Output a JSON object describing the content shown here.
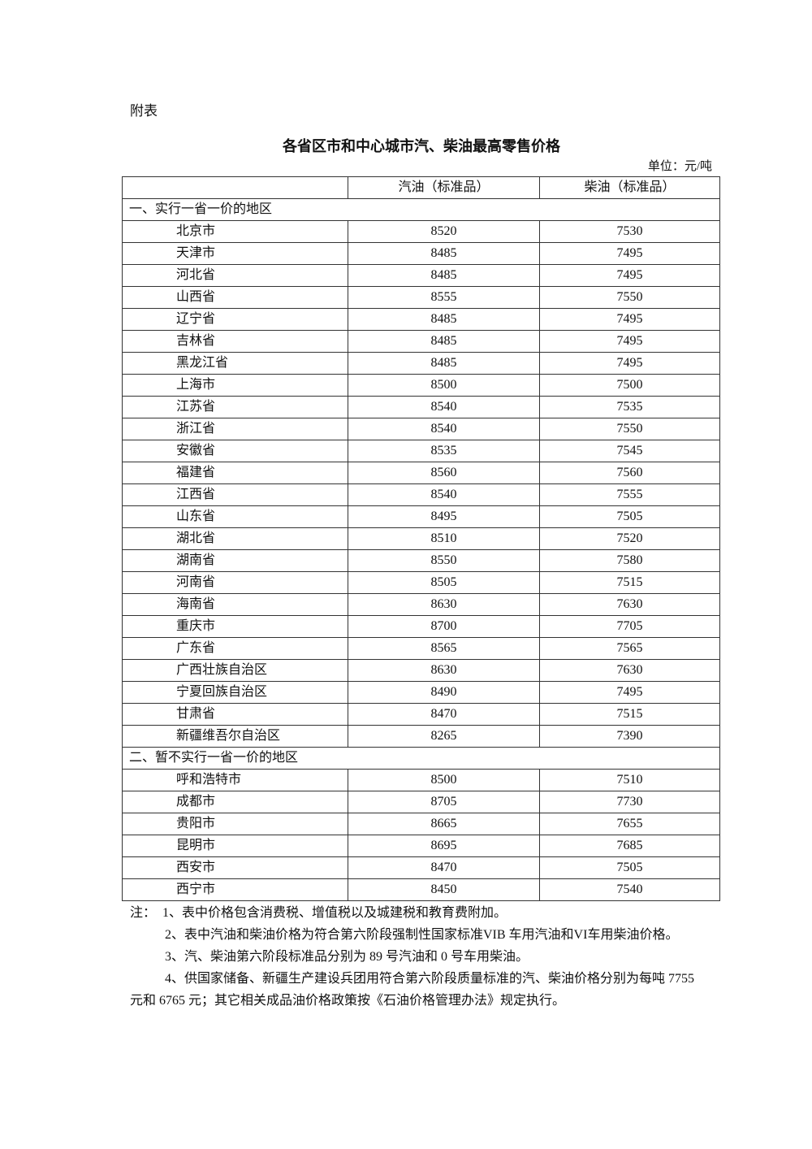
{
  "attachment_label": "附表",
  "title": "各省区市和中心城市汽、柴油最高零售价格",
  "unit": "单位：元/吨",
  "table": {
    "headers": [
      "",
      "汽油（标准品）",
      "柴油（标准品）"
    ],
    "sections": [
      {
        "label": "一、实行一省一价的地区",
        "rows": [
          [
            "北京市",
            "8520",
            "7530"
          ],
          [
            "天津市",
            "8485",
            "7495"
          ],
          [
            "河北省",
            "8485",
            "7495"
          ],
          [
            "山西省",
            "8555",
            "7550"
          ],
          [
            "辽宁省",
            "8485",
            "7495"
          ],
          [
            "吉林省",
            "8485",
            "7495"
          ],
          [
            "黑龙江省",
            "8485",
            "7495"
          ],
          [
            "上海市",
            "8500",
            "7500"
          ],
          [
            "江苏省",
            "8540",
            "7535"
          ],
          [
            "浙江省",
            "8540",
            "7550"
          ],
          [
            "安徽省",
            "8535",
            "7545"
          ],
          [
            "福建省",
            "8560",
            "7560"
          ],
          [
            "江西省",
            "8540",
            "7555"
          ],
          [
            "山东省",
            "8495",
            "7505"
          ],
          [
            "湖北省",
            "8510",
            "7520"
          ],
          [
            "湖南省",
            "8550",
            "7580"
          ],
          [
            "河南省",
            "8505",
            "7515"
          ],
          [
            "海南省",
            "8630",
            "7630"
          ],
          [
            "重庆市",
            "8700",
            "7705"
          ],
          [
            "广东省",
            "8565",
            "7565"
          ],
          [
            "广西壮族自治区",
            "8630",
            "7630"
          ],
          [
            "宁夏回族自治区",
            "8490",
            "7495"
          ],
          [
            "甘肃省",
            "8470",
            "7515"
          ],
          [
            "新疆维吾尔自治区",
            "8265",
            "7390"
          ]
        ]
      },
      {
        "label": "二、暂不实行一省一价的地区",
        "rows": [
          [
            "呼和浩特市",
            "8500",
            "7510"
          ],
          [
            "成都市",
            "8705",
            "7730"
          ],
          [
            "贵阳市",
            "8665",
            "7655"
          ],
          [
            "昆明市",
            "8695",
            "7685"
          ],
          [
            "西安市",
            "8470",
            "7505"
          ],
          [
            "西宁市",
            "8450",
            "7540"
          ]
        ]
      }
    ]
  },
  "notes": [
    "注：  1、表中价格包含消费税、增值税以及城建税和教育费附加。",
    "2、表中汽油和柴油价格为符合第六阶段强制性国家标准VIB 车用汽油和VI车用柴油价格。",
    "3、汽、柴油第六阶段标准品分别为 89 号汽油和 0 号车用柴油。",
    "4、供国家储备、新疆生产建设兵团用符合第六阶段质量标准的汽、柴油价格分别为每吨 7755 元和 6765 元；其它相关成品油价格政策按《石油价格管理办法》规定执行。"
  ]
}
